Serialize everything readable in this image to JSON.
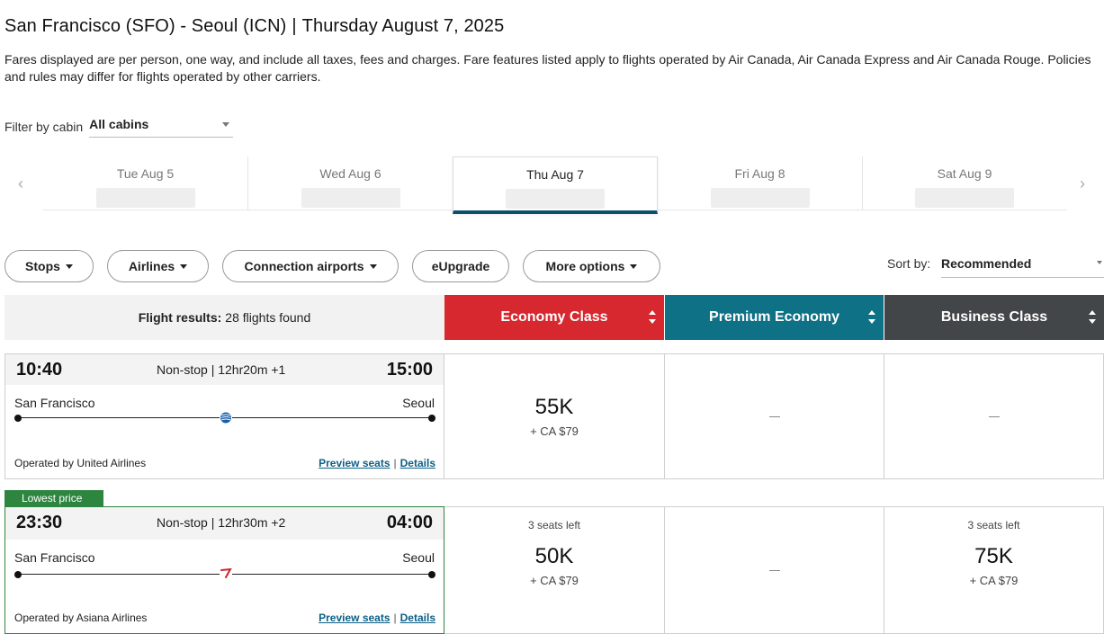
{
  "header": {
    "route": "San Francisco (SFO) - Seoul (ICN)",
    "separator": "|",
    "date": "Thursday August 7, 2025",
    "description": "Fares displayed are per person, one way, and include all taxes, fees and charges. Fare features listed apply to flights operated by Air Canada, Air Canada Express and Air Canada Rouge. Policies and rules may differ for flights operated by other carriers."
  },
  "filter": {
    "label": "Filter by cabin",
    "value": "All cabins"
  },
  "dates": [
    {
      "label": "Tue Aug 5"
    },
    {
      "label": "Wed Aug 6"
    },
    {
      "label": "Thu Aug 7"
    },
    {
      "label": "Fri Aug 8"
    },
    {
      "label": "Sat Aug 9"
    }
  ],
  "toolbar": {
    "stops": "Stops",
    "airlines": "Airlines",
    "connection_airports": "Connection airports",
    "eupgrade": "eUpgrade",
    "more_options": "More options",
    "sort_label": "Sort by:",
    "sort_value": "Recommended"
  },
  "table_header": {
    "results_label": "Flight results:",
    "results_count": "28 flights found",
    "economy": "Economy Class",
    "premium": "Premium Economy",
    "business": "Business Class"
  },
  "flights": [
    {
      "depart": "10:40",
      "info": "Non-stop | 12hr20m +1",
      "arrive": "15:00",
      "from": "San Francisco",
      "to": "Seoul",
      "operated_by": "Operated by United Airlines",
      "preview_seats": "Preview seats",
      "details": "Details",
      "economy": {
        "price": "55K",
        "tax": "+ CA $79"
      },
      "premium": {
        "dash": "—"
      },
      "business": {
        "dash": "—"
      }
    },
    {
      "badge": "Lowest price",
      "depart": "23:30",
      "info": "Non-stop | 12hr30m +2",
      "arrive": "04:00",
      "from": "San Francisco",
      "to": "Seoul",
      "operated_by": "Operated by Asiana Airlines",
      "preview_seats": "Preview seats",
      "details": "Details",
      "economy": {
        "seats": "3 seats left",
        "price": "50K",
        "tax": "+ CA $79"
      },
      "premium": {
        "dash": "—"
      },
      "business": {
        "seats": "3 seats left",
        "price": "75K",
        "tax": "+ CA $79"
      }
    }
  ],
  "colors": {
    "economy": "#d7272f",
    "premium": "#0f7185",
    "business": "#434649",
    "lowest_badge": "#2e8540",
    "active_date_underline": "#0b4f6c"
  },
  "icons": {
    "date_prev": "chevron-left-icon",
    "date_next": "chevron-right-icon",
    "united_logo": "united-globe-icon",
    "asiana_logo": "asiana-wing-icon"
  }
}
